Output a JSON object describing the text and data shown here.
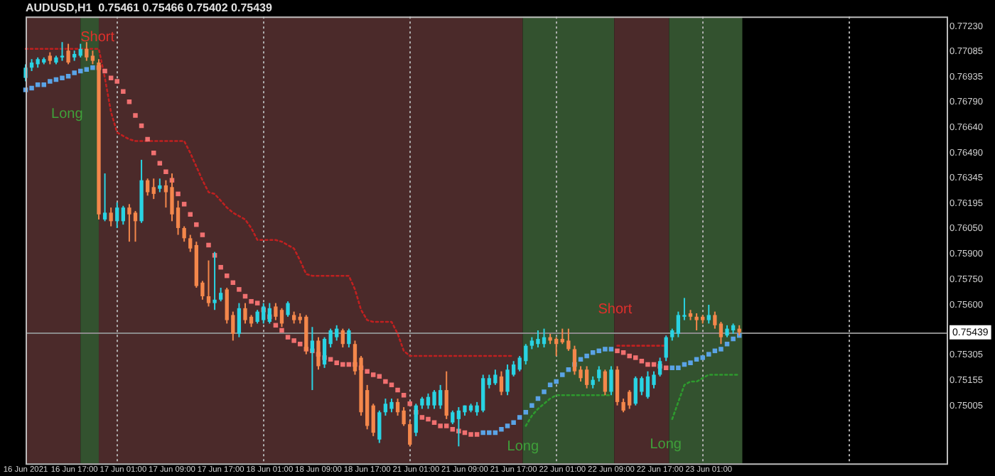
{
  "chart_data": {
    "type": "candlestick",
    "title": "AUDUSD,H1  0.75461 0.75466 0.75402 0.75439",
    "categories": [
      "16 Jun 2021",
      null,
      null,
      null,
      null,
      null,
      null,
      null,
      "16 Jun 17:00",
      null,
      null,
      null,
      null,
      null,
      null,
      null,
      "17 Jun 01:00",
      null,
      null,
      null,
      null,
      null,
      null,
      null,
      "17 Jun 09:00",
      null,
      null,
      null,
      null,
      null,
      null,
      null,
      "17 Jun 17:00",
      null,
      null,
      null,
      null,
      null,
      null,
      null,
      "18 Jun 01:00",
      null,
      null,
      null,
      null,
      null,
      null,
      null,
      "18 Jun 09:00",
      null,
      null,
      null,
      null,
      null,
      null,
      null,
      "18 Jun 17:00",
      null,
      null,
      null,
      null,
      null,
      null,
      null,
      "21 Jun 01:00",
      null,
      null,
      null,
      null,
      null,
      null,
      null,
      "21 Jun 09:00",
      null,
      null,
      null,
      null,
      null,
      null,
      null,
      "21 Jun 17:00",
      null,
      null,
      null,
      null,
      null,
      null,
      null,
      "22 Jun 01:00",
      null,
      null,
      null,
      null,
      null,
      null,
      null,
      "22 Jun 09:00",
      null,
      null,
      null,
      null,
      null,
      null,
      null,
      "22 Jun 17:00",
      null,
      null,
      null,
      null,
      null,
      null,
      null,
      "23 Jun 01:00",
      null,
      null,
      null,
      null,
      null,
      null,
      null,
      null,
      null,
      null,
      null,
      null,
      null,
      null,
      null,
      null,
      null,
      null,
      null,
      null,
      null,
      null,
      null,
      null,
      null,
      null,
      null,
      null,
      null,
      null,
      null,
      null,
      null,
      null,
      null,
      null,
      null,
      null,
      null
    ],
    "ohlc": [
      [
        0.7693,
        0.7701,
        0.7691,
        0.7699
      ],
      [
        0.7699,
        0.7704,
        0.7697,
        0.7702
      ],
      [
        0.7701,
        0.7705,
        0.7699,
        0.7704
      ],
      [
        0.7702,
        0.7705,
        0.7701,
        0.7704
      ],
      [
        0.7706,
        0.7708,
        0.7701,
        0.7703
      ],
      [
        0.7702,
        0.7706,
        0.7701,
        0.7705
      ],
      [
        0.7705,
        0.7714,
        0.7703,
        0.7706
      ],
      [
        0.7709,
        0.7713,
        0.7701,
        0.7702
      ],
      [
        0.7705,
        0.7709,
        0.7703,
        0.7707
      ],
      [
        0.7706,
        0.7713,
        0.7705,
        0.771
      ],
      [
        0.771,
        0.7714,
        0.7703,
        0.7705
      ],
      [
        0.7706,
        0.7709,
        0.7701,
        0.7703
      ],
      [
        0.7702,
        0.7704,
        0.761,
        0.7613
      ],
      [
        0.761,
        0.7637,
        0.7609,
        0.7614
      ],
      [
        0.7614,
        0.7617,
        0.7606,
        0.7609
      ],
      [
        0.7609,
        0.762,
        0.7605,
        0.7617
      ],
      [
        0.7609,
        0.7618,
        0.7607,
        0.7617
      ],
      [
        0.7617,
        0.7619,
        0.7597,
        0.7613
      ],
      [
        0.7614,
        0.7615,
        0.7597,
        0.7609
      ],
      [
        0.7609,
        0.7645,
        0.7608,
        0.7633
      ],
      [
        0.7633,
        0.7634,
        0.7624,
        0.7626
      ],
      [
        0.7629,
        0.7634,
        0.7622,
        0.7625
      ],
      [
        0.7628,
        0.7634,
        0.7626,
        0.763
      ],
      [
        0.763,
        0.7633,
        0.7617,
        0.7626
      ],
      [
        0.7629,
        0.7637,
        0.7609,
        0.7613
      ],
      [
        0.7617,
        0.7621,
        0.7601,
        0.7605
      ],
      [
        0.7605,
        0.7606,
        0.7597,
        0.7599
      ],
      [
        0.7599,
        0.7601,
        0.7591,
        0.7593
      ],
      [
        0.7595,
        0.7597,
        0.757,
        0.7571
      ],
      [
        0.7573,
        0.7574,
        0.7563,
        0.7565
      ],
      [
        0.7565,
        0.7586,
        0.7559,
        0.7561
      ],
      [
        0.7561,
        0.7591,
        0.7557,
        0.7563
      ],
      [
        0.7563,
        0.757,
        0.7562,
        0.7567
      ],
      [
        0.7569,
        0.757,
        0.7549,
        0.7551
      ],
      [
        0.7554,
        0.7556,
        0.7539,
        0.7543
      ],
      [
        0.7543,
        0.7561,
        0.7541,
        0.7558
      ],
      [
        0.7558,
        0.7561,
        0.7549,
        0.7551
      ],
      [
        0.7553,
        0.7554,
        0.7547,
        0.7549
      ],
      [
        0.755,
        0.7557,
        0.7549,
        0.7556
      ],
      [
        0.7551,
        0.7561,
        0.7549,
        0.7559
      ],
      [
        0.755,
        0.7561,
        0.7549,
        0.7558
      ],
      [
        0.7559,
        0.7561,
        0.7551,
        0.7553
      ],
      [
        0.7557,
        0.7558,
        0.7547,
        0.7549
      ],
      [
        0.7554,
        0.7562,
        0.7553,
        0.7561
      ],
      [
        0.7554,
        0.7556,
        0.7549,
        0.7551
      ],
      [
        0.7553,
        0.7555,
        0.7549,
        0.7551
      ],
      [
        0.7553,
        0.7554,
        0.7531,
        0.7533
      ],
      [
        0.7532,
        0.7547,
        0.751,
        0.7539
      ],
      [
        0.7539,
        0.7541,
        0.7522,
        0.7524
      ],
      [
        0.7525,
        0.7541,
        0.7523,
        0.754
      ],
      [
        0.7537,
        0.7546,
        0.7535,
        0.7545
      ],
      [
        0.7541,
        0.7548,
        0.7539,
        0.7546
      ],
      [
        0.7545,
        0.7546,
        0.7535,
        0.7537
      ],
      [
        0.7537,
        0.7546,
        0.7535,
        0.7545
      ],
      [
        0.7537,
        0.7539,
        0.7519,
        0.7521
      ],
      [
        0.7529,
        0.753,
        0.7495,
        0.7497
      ],
      [
        0.751,
        0.7513,
        0.7487,
        0.7489
      ],
      [
        0.7501,
        0.7502,
        0.7483,
        0.7485
      ],
      [
        0.7481,
        0.7498,
        0.7479,
        0.7497
      ],
      [
        0.7497,
        0.7505,
        0.7495,
        0.7502
      ],
      [
        0.7499,
        0.7505,
        0.7497,
        0.7503
      ],
      [
        0.7503,
        0.7505,
        0.7495,
        0.7497
      ],
      [
        0.7498,
        0.75,
        0.7489,
        0.749
      ],
      [
        0.749,
        0.7492,
        0.7477,
        0.7478
      ],
      [
        0.7485,
        0.7502,
        0.7483,
        0.7501
      ],
      [
        0.7501,
        0.7506,
        0.7499,
        0.7505
      ],
      [
        0.7501,
        0.7508,
        0.7499,
        0.7506
      ],
      [
        0.7501,
        0.751,
        0.7499,
        0.7509
      ],
      [
        0.7501,
        0.7513,
        0.7499,
        0.751
      ],
      [
        0.751,
        0.7521,
        0.7493,
        0.7495
      ],
      [
        0.7491,
        0.7498,
        0.749,
        0.7497
      ],
      [
        0.7493,
        0.75,
        0.7477,
        0.7498
      ],
      [
        0.7497,
        0.7501,
        0.7495,
        0.7501
      ],
      [
        0.7498,
        0.7502,
        0.7497,
        0.7501
      ],
      [
        0.7497,
        0.7503,
        0.7495,
        0.7501
      ],
      [
        0.7498,
        0.7519,
        0.7497,
        0.7517
      ],
      [
        0.7513,
        0.7519,
        0.7511,
        0.7517
      ],
      [
        0.7514,
        0.7522,
        0.7513,
        0.7519
      ],
      [
        0.7518,
        0.7521,
        0.7507,
        0.7509
      ],
      [
        0.7509,
        0.7525,
        0.7507,
        0.7522
      ],
      [
        0.7519,
        0.7527,
        0.7518,
        0.7525
      ],
      [
        0.7522,
        0.753,
        0.7521,
        0.7529
      ],
      [
        0.7527,
        0.7537,
        0.7525,
        0.7536
      ],
      [
        0.7536,
        0.7541,
        0.7534,
        0.7539
      ],
      [
        0.7537,
        0.7545,
        0.7535,
        0.754
      ],
      [
        0.7537,
        0.7546,
        0.7535,
        0.7541
      ],
      [
        0.7541,
        0.7543,
        0.7537,
        0.7539
      ],
      [
        0.754,
        0.7541,
        0.753,
        0.7537
      ],
      [
        0.754,
        0.7546,
        0.7537,
        0.7538
      ],
      [
        0.7539,
        0.7546,
        0.7533,
        0.7534
      ],
      [
        0.7534,
        0.7536,
        0.7519,
        0.7521
      ],
      [
        0.7522,
        0.7524,
        0.7515,
        0.7517
      ],
      [
        0.7522,
        0.7524,
        0.7511,
        0.7513
      ],
      [
        0.7513,
        0.7518,
        0.7511,
        0.7516
      ],
      [
        0.7517,
        0.7524,
        0.7515,
        0.7522
      ],
      [
        0.7521,
        0.7522,
        0.7507,
        0.7509
      ],
      [
        0.7509,
        0.7524,
        0.7507,
        0.7522
      ],
      [
        0.7522,
        0.7524,
        0.7501,
        0.7503
      ],
      [
        0.7503,
        0.7505,
        0.7497,
        0.7498
      ],
      [
        0.7509,
        0.751,
        0.7499,
        0.7501
      ],
      [
        0.7502,
        0.7518,
        0.7501,
        0.7517
      ],
      [
        0.7509,
        0.7518,
        0.7507,
        0.7517
      ],
      [
        0.7506,
        0.7521,
        0.7505,
        0.7518
      ],
      [
        0.7513,
        0.7521,
        0.7511,
        0.7519
      ],
      [
        0.7519,
        0.7529,
        0.7518,
        0.7527
      ],
      [
        0.7529,
        0.7542,
        0.7527,
        0.7541
      ],
      [
        0.7541,
        0.7546,
        0.7539,
        0.7545
      ],
      [
        0.7543,
        0.7556,
        0.7541,
        0.7554
      ],
      [
        0.7553,
        0.7564,
        0.7551,
        0.7554
      ],
      [
        0.7555,
        0.7557,
        0.7551,
        0.7553
      ],
      [
        0.7553,
        0.7555,
        0.7545,
        0.7551
      ],
      [
        0.7553,
        0.7554,
        0.7549,
        0.7551
      ],
      [
        0.7551,
        0.756,
        0.7549,
        0.7554
      ],
      [
        0.7554,
        0.7556,
        0.7546,
        0.7548
      ],
      [
        0.7549,
        0.755,
        0.7537,
        0.7541
      ],
      [
        0.7542,
        0.7548,
        0.7541,
        0.7546
      ],
      [
        0.7545,
        0.7549,
        0.7543,
        0.7548
      ],
      [
        0.7546,
        0.7548,
        0.7542,
        0.75439
      ],
      null,
      null,
      null,
      null,
      null,
      null,
      null,
      null,
      null,
      null,
      null,
      null,
      null,
      null,
      null,
      null,
      null,
      null,
      null,
      null,
      null,
      null,
      null,
      null,
      null,
      null,
      null,
      null,
      null,
      null,
      null,
      null,
      null,
      null
    ],
    "colors": [
      "#29d3e3",
      "#29d3e3",
      "#29d3e3",
      "#29d3e3",
      "#f4874b",
      "#29d3e3",
      "#29d3e3",
      "#f4874b",
      "#29d3e3",
      "#29d3e3",
      "#f4874b",
      "#f4874b",
      "#f4874b",
      "#29d3e3",
      "#f4874b",
      "#29d3e3",
      "#29d3e3",
      "#f4874b",
      "#f4874b",
      "#29d3e3",
      "#f4874b",
      "#f4874b",
      "#29d3e3",
      "#f4874b",
      "#f4874b",
      "#f4874b",
      "#f4874b",
      "#f4874b",
      "#f4874b",
      "#f4874b",
      "#f4874b",
      "#29d3e3",
      "#29d3e3",
      "#f4874b",
      "#f4874b",
      "#29d3e3",
      "#f4874b",
      "#f4874b",
      "#29d3e3",
      "#29d3e3",
      "#29d3e3",
      "#f4874b",
      "#f4874b",
      "#29d3e3",
      "#f4874b",
      "#f4874b",
      "#f4874b",
      "#29d3e3",
      "#f4874b",
      "#29d3e3",
      "#29d3e3",
      "#29d3e3",
      "#f4874b",
      "#29d3e3",
      "#f4874b",
      "#f4874b",
      "#f4874b",
      "#f4874b",
      "#29d3e3",
      "#29d3e3",
      "#29d3e3",
      "#f4874b",
      "#f4874b",
      "#f4874b",
      "#29d3e3",
      "#29d3e3",
      "#29d3e3",
      "#29d3e3",
      "#29d3e3",
      "#f4874b",
      "#29d3e3",
      "#29d3e3",
      "#29d3e3",
      "#29d3e3",
      "#29d3e3",
      "#29d3e3",
      "#29d3e3",
      "#29d3e3",
      "#f4874b",
      "#29d3e3",
      "#29d3e3",
      "#29d3e3",
      "#29d3e3",
      "#29d3e3",
      "#29d3e3",
      "#29d3e3",
      "#f4874b",
      "#f4874b",
      "#f4874b",
      "#f4874b",
      "#f4874b",
      "#f4874b",
      "#f4874b",
      "#29d3e3",
      "#29d3e3",
      "#f4874b",
      "#29d3e3",
      "#f4874b",
      "#f4874b",
      "#f4874b",
      "#29d3e3",
      "#29d3e3",
      "#29d3e3",
      "#29d3e3",
      "#29d3e3",
      "#29d3e3",
      "#29d3e3",
      "#29d3e3",
      "#29d3e3",
      "#f4874b",
      "#f4874b",
      "#f4874b",
      "#29d3e3",
      "#f4874b",
      "#f4874b",
      "#29d3e3",
      "#29d3e3",
      "#f4874b",
      null,
      null,
      null,
      null,
      null,
      null,
      null,
      null,
      null,
      null,
      null,
      null,
      null,
      null,
      null,
      null,
      null,
      null,
      null,
      null,
      null,
      null,
      null,
      null,
      null,
      null,
      null,
      null,
      null,
      null,
      null,
      null,
      null,
      null
    ],
    "series": [
      {
        "type": "scatter",
        "marker": "square",
        "values": [
          0.7686,
          0.7687,
          0.7689,
          0.7689,
          0.7691,
          0.7692,
          0.7693,
          0.7694,
          0.7696,
          0.7697,
          0.7698,
          0.7699,
          0.7699,
          0.7697,
          0.7693,
          0.7691,
          0.7685,
          0.7679,
          0.7671,
          0.7665,
          0.7657,
          0.7649,
          0.7643,
          0.7638,
          0.7633,
          0.7625,
          0.7619,
          0.7613,
          0.7607,
          0.7601,
          0.7595,
          0.7589,
          0.7582,
          0.7577,
          0.7573,
          0.7569,
          0.7565,
          0.7562,
          0.7561,
          0.7557,
          0.7553,
          0.7548,
          0.7545,
          0.7541,
          0.7539,
          0.7537,
          0.7534,
          0.7533,
          0.7531,
          0.7529,
          0.7528,
          0.7526,
          0.7525,
          0.7525,
          0.7525,
          0.7523,
          0.7521,
          0.7519,
          0.7518,
          0.7515,
          0.7513,
          0.751,
          0.7507,
          0.7502,
          0.7497,
          0.7494,
          0.7493,
          0.7491,
          0.7489,
          0.7489,
          0.7487,
          0.7486,
          0.7485,
          0.7484,
          0.7484,
          0.7485,
          0.7485,
          0.7485,
          0.7487,
          0.7489,
          0.7491,
          0.7494,
          0.7497,
          0.7501,
          0.7505,
          0.7509,
          0.7513,
          0.7515,
          0.7519,
          0.7522,
          0.7525,
          0.7528,
          0.753,
          0.7532,
          0.7533,
          0.7534,
          0.7534,
          0.7533,
          0.7532,
          0.753,
          0.7529,
          0.7527,
          0.7525,
          0.7525,
          0.7524,
          0.7523,
          0.7523,
          0.7523,
          0.7525,
          0.7526,
          0.7528,
          0.7529,
          0.7531,
          0.7533,
          0.7534,
          0.7537,
          0.754,
          0.7542,
          null,
          null,
          null,
          null,
          null,
          null,
          null,
          null,
          null,
          null,
          null,
          null,
          null,
          null,
          null,
          null,
          null,
          null,
          null,
          null,
          null,
          null,
          null,
          null,
          null,
          null,
          null,
          null,
          null,
          null,
          null,
          null,
          null,
          null
        ],
        "colors": [
          "#5aa3e6",
          "#5aa3e6",
          "#5aa3e6",
          "#5aa3e6",
          "#5aa3e6",
          "#5aa3e6",
          "#5aa3e6",
          "#5aa3e6",
          "#5aa3e6",
          "#5aa3e6",
          "#5aa3e6",
          "#5aa3e6",
          "#f07070",
          "#f07070",
          "#f07070",
          "#f07070",
          "#f07070",
          "#f07070",
          "#f07070",
          "#f07070",
          "#f07070",
          "#f07070",
          "#f07070",
          "#f07070",
          "#f07070",
          "#f07070",
          "#f07070",
          "#f07070",
          "#f07070",
          "#f07070",
          "#f07070",
          "#f07070",
          "#f07070",
          "#f07070",
          "#f07070",
          "#f07070",
          "#f07070",
          "#f07070",
          "#f07070",
          "#f07070",
          "#f07070",
          "#f07070",
          "#f07070",
          "#f07070",
          "#f07070",
          "#f07070",
          "#f07070",
          "#f07070",
          "#f07070",
          "#f07070",
          "#f07070",
          "#f07070",
          "#f07070",
          "#f07070",
          "#f07070",
          "#f07070",
          "#f07070",
          "#f07070",
          "#f07070",
          "#f07070",
          "#f07070",
          "#f07070",
          "#f07070",
          "#f07070",
          "#f07070",
          "#f07070",
          "#f07070",
          "#f07070",
          "#f07070",
          "#f07070",
          "#f07070",
          "#f07070",
          "#f07070",
          "#f07070",
          "#f07070",
          "#5aa3e6",
          "#5aa3e6",
          "#5aa3e6",
          "#5aa3e6",
          "#5aa3e6",
          "#5aa3e6",
          "#5aa3e6",
          "#5aa3e6",
          "#5aa3e6",
          "#5aa3e6",
          "#5aa3e6",
          "#5aa3e6",
          "#5aa3e6",
          "#5aa3e6",
          "#5aa3e6",
          "#5aa3e6",
          "#5aa3e6",
          "#5aa3e6",
          "#5aa3e6",
          "#5aa3e6",
          "#5aa3e6",
          "#5aa3e6",
          "#f07070",
          "#f07070",
          "#f07070",
          "#f07070",
          "#f07070",
          "#f07070",
          "#f07070",
          "#f07070",
          "#f07070",
          "#5aa3e6",
          "#5aa3e6",
          "#5aa3e6",
          "#5aa3e6",
          "#5aa3e6",
          "#5aa3e6",
          "#5aa3e6",
          "#5aa3e6",
          "#5aa3e6",
          "#5aa3e6",
          "#5aa3e6",
          "#5aa3e6",
          null,
          null,
          null,
          null,
          null,
          null,
          null,
          null,
          null,
          null,
          null,
          null,
          null,
          null,
          null,
          null,
          null,
          null,
          null,
          null,
          null,
          null,
          null,
          null,
          null,
          null,
          null,
          null,
          null,
          null,
          null,
          null,
          null,
          null
        ]
      },
      {
        "type": "line",
        "line_style": "dotted",
        "color": "#c02020",
        "values": [
          0.771,
          0.771,
          0.771,
          0.771,
          0.771,
          0.771,
          0.771,
          0.771,
          0.771,
          0.771,
          0.771,
          0.771,
          0.771,
          0.7693,
          0.7673,
          0.7661,
          0.7659,
          0.7657,
          0.7656,
          0.7656,
          0.7656,
          0.7656,
          0.7656,
          0.7656,
          0.7656,
          0.7656,
          0.7656,
          0.7649,
          0.7641,
          0.7633,
          0.7626,
          0.7625,
          0.7621,
          0.7617,
          0.7614,
          0.7612,
          0.761,
          0.7605,
          0.7598,
          0.7598,
          0.7598,
          0.7598,
          0.7597,
          0.7595,
          0.7593,
          0.7586,
          0.7578,
          0.7577,
          0.7577,
          0.7577,
          0.7577,
          0.7577,
          0.7577,
          0.7577,
          0.7569,
          0.7557,
          0.7551,
          0.755,
          0.755,
          0.755,
          0.755,
          0.7543,
          0.7533,
          0.753,
          0.753,
          0.753,
          0.753,
          0.753,
          0.753,
          0.753,
          0.753,
          0.753,
          0.753,
          0.753,
          0.753,
          0.753,
          0.753,
          0.753,
          0.753,
          0.753,
          0.753,
          null,
          null,
          null,
          null,
          null,
          null,
          null,
          null,
          null,
          null,
          null,
          null,
          null,
          null,
          null,
          null,
          0.7536,
          0.7536,
          0.7536,
          0.7536,
          0.7536,
          0.7536,
          0.7536,
          0.7536,
          0.7536,
          null,
          null,
          null,
          null,
          null,
          null,
          null,
          null,
          null,
          null,
          null,
          null,
          null,
          null,
          null,
          null,
          null,
          null,
          null,
          null,
          null,
          null,
          null,
          null,
          null,
          null,
          null,
          null,
          null,
          null,
          null,
          null,
          null,
          null,
          null,
          null,
          null,
          null,
          null,
          null,
          null,
          null,
          null,
          null,
          null,
          null
        ]
      },
      {
        "type": "line",
        "line_style": "dotted",
        "color": "#2e9a2e",
        "values": [
          null,
          null,
          null,
          null,
          null,
          null,
          null,
          null,
          null,
          null,
          null,
          null,
          null,
          null,
          null,
          null,
          null,
          null,
          null,
          null,
          null,
          null,
          null,
          null,
          null,
          null,
          null,
          null,
          null,
          null,
          null,
          null,
          null,
          null,
          null,
          null,
          null,
          null,
          null,
          null,
          null,
          null,
          null,
          null,
          null,
          null,
          null,
          null,
          null,
          null,
          null,
          null,
          null,
          null,
          null,
          null,
          null,
          null,
          null,
          null,
          null,
          null,
          null,
          null,
          null,
          null,
          null,
          null,
          null,
          null,
          null,
          null,
          null,
          null,
          null,
          null,
          null,
          null,
          null,
          null,
          null,
          null,
          0.7489,
          0.7495,
          0.7499,
          0.7502,
          0.7505,
          0.7507,
          0.7507,
          0.7507,
          0.7507,
          0.7507,
          0.7507,
          0.7507,
          0.7507,
          0.7507,
          0.7507,
          null,
          null,
          null,
          null,
          null,
          null,
          null,
          null,
          null,
          0.7493,
          0.7503,
          0.7513,
          0.7515,
          0.7515,
          0.7517,
          0.7519,
          0.7519,
          0.7519,
          0.7519,
          0.7519,
          0.7519,
          null,
          null,
          null,
          null,
          null,
          null,
          null,
          null,
          null,
          null,
          null,
          null,
          null,
          null,
          null,
          null,
          null,
          null,
          null,
          null,
          null,
          null,
          null,
          null,
          null,
          null,
          null,
          null,
          null,
          null,
          null,
          null,
          null,
          null
        ]
      }
    ],
    "ylim": [
      0.7467,
      0.7729
    ],
    "yticks": [
      {
        "value": 0.7723,
        "label": "0.77230"
      },
      {
        "value": 0.77085,
        "label": "0.77085"
      },
      {
        "value": 0.76935,
        "label": "0.76935"
      },
      {
        "value": 0.7679,
        "label": "0.76790"
      },
      {
        "value": 0.7664,
        "label": "0.76640"
      },
      {
        "value": 0.7649,
        "label": "0.76490"
      },
      {
        "value": 0.76345,
        "label": "0.76345"
      },
      {
        "value": 0.76195,
        "label": "0.76195"
      },
      {
        "value": 0.7605,
        "label": "0.76050"
      },
      {
        "value": 0.759,
        "label": "0.75900"
      },
      {
        "value": 0.7575,
        "label": "0.75750"
      },
      {
        "value": 0.756,
        "label": "0.75600"
      },
      {
        "value": 0.75305,
        "label": "0.75305"
      },
      {
        "value": 0.75155,
        "label": "0.75155"
      },
      {
        "value": 0.75005,
        "label": "0.75005"
      }
    ],
    "ref_lines": [
      {
        "axis": "y",
        "value": 0.75439,
        "label": "0.75439",
        "line_style": "solid",
        "color": "#8a8a8a"
      }
    ],
    "annotations": [
      "Short",
      "Long",
      "Long",
      "Short",
      "Long"
    ],
    "grid": false,
    "legend": false
  }
}
